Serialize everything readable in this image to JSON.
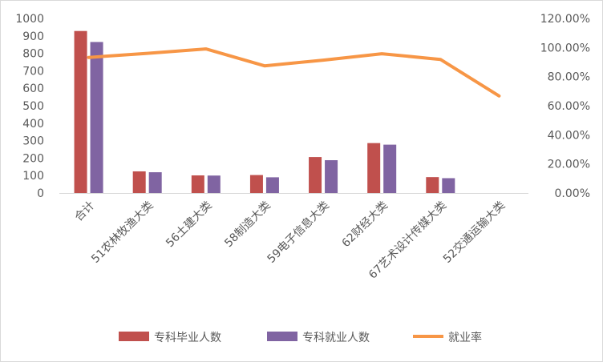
{
  "chart_data": {
    "type": "bar",
    "categories": [
      "合计",
      "51农林牧渔大类",
      "56土建大类",
      "58制造大类",
      "59电子信息大类",
      "62财经大类",
      "67艺术设计传媒大类",
      "52交通运输大类"
    ],
    "series": [
      {
        "name": "专科毕业人数",
        "type": "bar",
        "axis": "left",
        "color": "#c0504d",
        "values": [
          928,
          124,
          101,
          103,
          206,
          286,
          91,
          0
        ]
      },
      {
        "name": "专科就业人数",
        "type": "bar",
        "axis": "left",
        "color": "#8064a2",
        "values": [
          865,
          119,
          100,
          90,
          188,
          277,
          85,
          0
        ]
      },
      {
        "name": "就业率",
        "type": "line",
        "axis": "right",
        "color": "#f79646",
        "values": [
          0.932,
          0.96,
          0.99,
          0.874,
          0.913,
          0.957,
          0.918,
          0.667
        ]
      }
    ],
    "y_left": {
      "min": 0,
      "max": 1000,
      "step": 100,
      "ticks": [
        "0",
        "100",
        "200",
        "300",
        "400",
        "500",
        "600",
        "700",
        "800",
        "900",
        "1000"
      ]
    },
    "y_right": {
      "min": 0,
      "max": 1.2,
      "step": 0.2,
      "ticks": [
        "0.00%",
        "20.00%",
        "40.00%",
        "60.00%",
        "80.00%",
        "100.00%",
        "120.00%"
      ]
    },
    "legend_position": "bottom",
    "grid": false,
    "title": "",
    "xlabel": "",
    "ylabel": ""
  }
}
